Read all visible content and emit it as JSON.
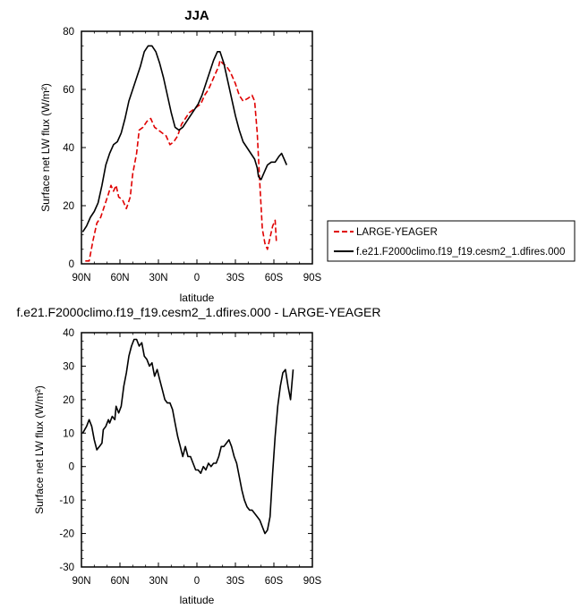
{
  "chart_data": [
    {
      "type": "line",
      "title": "JJA",
      "xlabel": "latitude",
      "ylabel": "Surface net LW flux (W/m²)",
      "xlim": [
        90,
        -90
      ],
      "ylim": [
        0,
        80
      ],
      "x_ticks": [
        {
          "value": 90,
          "label": "90N"
        },
        {
          "value": 60,
          "label": "60N"
        },
        {
          "value": 30,
          "label": "30N"
        },
        {
          "value": 0,
          "label": "0"
        },
        {
          "value": -30,
          "label": "30S"
        },
        {
          "value": -60,
          "label": "60S"
        },
        {
          "value": -90,
          "label": "90S"
        }
      ],
      "y_ticks": [
        0,
        20,
        40,
        60,
        80
      ],
      "legend_position": "right",
      "series": [
        {
          "name": "LARGE-YEAGER",
          "color": "#e00000",
          "dash": "dashed",
          "points": [
            [
              87,
              1
            ],
            [
              84,
              1
            ],
            [
              81,
              8
            ],
            [
              78,
              14
            ],
            [
              75,
              16
            ],
            [
              72,
              20
            ],
            [
              69,
              24
            ],
            [
              67,
              27
            ],
            [
              65,
              25
            ],
            [
              63,
              27
            ],
            [
              61,
              23
            ],
            [
              58,
              22
            ],
            [
              55,
              19
            ],
            [
              52,
              23
            ],
            [
              50,
              31
            ],
            [
              47,
              38
            ],
            [
              45,
              46
            ],
            [
              42,
              47
            ],
            [
              39,
              49
            ],
            [
              36,
              50
            ],
            [
              33,
              47
            ],
            [
              30,
              46
            ],
            [
              27,
              45
            ],
            [
              24,
              44
            ],
            [
              21,
              41
            ],
            [
              18,
              42
            ],
            [
              15,
              44
            ],
            [
              12,
              48
            ],
            [
              9,
              50
            ],
            [
              6,
              52
            ],
            [
              3,
              53
            ],
            [
              0,
              54
            ],
            [
              -3,
              55
            ],
            [
              -6,
              58
            ],
            [
              -9,
              60
            ],
            [
              -12,
              63
            ],
            [
              -15,
              66
            ],
            [
              -17,
              68
            ],
            [
              -18,
              70
            ],
            [
              -20,
              69
            ],
            [
              -23,
              68
            ],
            [
              -26,
              66
            ],
            [
              -30,
              62
            ],
            [
              -33,
              58
            ],
            [
              -36,
              56
            ],
            [
              -40,
              57
            ],
            [
              -43,
              58
            ],
            [
              -45,
              56
            ],
            [
              -47,
              45
            ],
            [
              -49,
              28
            ],
            [
              -51,
              12
            ],
            [
              -53,
              7
            ],
            [
              -55,
              5
            ],
            [
              -57,
              9
            ],
            [
              -59,
              13
            ],
            [
              -61,
              15
            ],
            [
              -62,
              7
            ]
          ]
        },
        {
          "name": "f.e21.F2000climo.f19_f19.cesm2_1.dfires.000",
          "color": "#000000",
          "dash": "solid",
          "points": [
            [
              89,
              11
            ],
            [
              86,
              13
            ],
            [
              83,
              16
            ],
            [
              80,
              18
            ],
            [
              77,
              21
            ],
            [
              74,
              27
            ],
            [
              71,
              34
            ],
            [
              68,
              38
            ],
            [
              65,
              41
            ],
            [
              62,
              42
            ],
            [
              59,
              45
            ],
            [
              56,
              50
            ],
            [
              53,
              56
            ],
            [
              50,
              60
            ],
            [
              47,
              64
            ],
            [
              44,
              68
            ],
            [
              41,
              73
            ],
            [
              38,
              75
            ],
            [
              35,
              75
            ],
            [
              32,
              73
            ],
            [
              29,
              69
            ],
            [
              26,
              64
            ],
            [
              23,
              58
            ],
            [
              20,
              52
            ],
            [
              17,
              47
            ],
            [
              14,
              46
            ],
            [
              11,
              47
            ],
            [
              8,
              49
            ],
            [
              5,
              51
            ],
            [
              2,
              53
            ],
            [
              -1,
              55
            ],
            [
              -4,
              58
            ],
            [
              -7,
              62
            ],
            [
              -10,
              66
            ],
            [
              -13,
              70
            ],
            [
              -16,
              73
            ],
            [
              -18,
              73
            ],
            [
              -21,
              69
            ],
            [
              -24,
              63
            ],
            [
              -27,
              57
            ],
            [
              -30,
              51
            ],
            [
              -33,
              46
            ],
            [
              -36,
              42
            ],
            [
              -39,
              40
            ],
            [
              -42,
              38
            ],
            [
              -45,
              36
            ],
            [
              -47,
              33
            ],
            [
              -48,
              30
            ],
            [
              -50,
              29
            ],
            [
              -52,
              31
            ],
            [
              -55,
              34
            ],
            [
              -58,
              35
            ],
            [
              -61,
              35
            ],
            [
              -64,
              37
            ],
            [
              -66,
              38
            ],
            [
              -68,
              36
            ],
            [
              -70,
              34
            ]
          ]
        }
      ]
    },
    {
      "type": "line",
      "title": "f.e21.F2000climo.f19_f19.cesm2_1.dfires.000 - LARGE-YEAGER",
      "xlabel": "latitude",
      "ylabel": "Surface net LW flux (W/m²)",
      "xlim": [
        90,
        -90
      ],
      "ylim": [
        -30,
        40
      ],
      "x_ticks": [
        {
          "value": 90,
          "label": "90N"
        },
        {
          "value": 60,
          "label": "60N"
        },
        {
          "value": 30,
          "label": "30N"
        },
        {
          "value": 0,
          "label": "0"
        },
        {
          "value": -30,
          "label": "30S"
        },
        {
          "value": -60,
          "label": "60S"
        },
        {
          "value": -90,
          "label": "90S"
        }
      ],
      "y_ticks": [
        -30,
        -20,
        -10,
        0,
        10,
        20,
        30,
        40
      ],
      "series": [
        {
          "name": "",
          "color": "#000000",
          "dash": "solid",
          "points": [
            [
              89,
              10
            ],
            [
              86,
              12
            ],
            [
              84,
              14
            ],
            [
              82,
              12
            ],
            [
              80,
              8
            ],
            [
              78,
              5
            ],
            [
              76,
              6
            ],
            [
              74,
              7
            ],
            [
              73,
              11
            ],
            [
              71,
              12
            ],
            [
              69,
              14
            ],
            [
              68,
              13
            ],
            [
              66,
              15
            ],
            [
              64,
              14
            ],
            [
              63,
              18
            ],
            [
              61,
              16
            ],
            [
              59,
              18
            ],
            [
              57,
              24
            ],
            [
              55,
              28
            ],
            [
              53,
              33
            ],
            [
              51,
              36
            ],
            [
              49,
              38
            ],
            [
              47,
              38
            ],
            [
              45,
              36
            ],
            [
              43,
              37
            ],
            [
              41,
              33
            ],
            [
              39,
              32
            ],
            [
              37,
              30
            ],
            [
              35,
              31
            ],
            [
              33,
              27
            ],
            [
              31,
              29
            ],
            [
              29,
              26
            ],
            [
              27,
              23
            ],
            [
              25,
              20
            ],
            [
              23,
              19
            ],
            [
              21,
              19
            ],
            [
              19,
              17
            ],
            [
              17,
              13
            ],
            [
              15,
              9
            ],
            [
              13,
              6
            ],
            [
              11,
              3
            ],
            [
              9,
              6
            ],
            [
              7,
              3
            ],
            [
              5,
              3
            ],
            [
              3,
              1
            ],
            [
              1,
              -1
            ],
            [
              -1,
              -1
            ],
            [
              -3,
              -2
            ],
            [
              -5,
              0
            ],
            [
              -7,
              -1
            ],
            [
              -9,
              1
            ],
            [
              -11,
              0
            ],
            [
              -13,
              1
            ],
            [
              -15,
              1
            ],
            [
              -17,
              3
            ],
            [
              -19,
              6
            ],
            [
              -21,
              6
            ],
            [
              -23,
              7
            ],
            [
              -25,
              8
            ],
            [
              -27,
              6
            ],
            [
              -29,
              3
            ],
            [
              -31,
              1
            ],
            [
              -33,
              -3
            ],
            [
              -35,
              -7
            ],
            [
              -37,
              -10
            ],
            [
              -39,
              -12
            ],
            [
              -41,
              -13
            ],
            [
              -43,
              -13
            ],
            [
              -45,
              -14
            ],
            [
              -47,
              -15
            ],
            [
              -49,
              -16
            ],
            [
              -51,
              -18
            ],
            [
              -53,
              -20
            ],
            [
              -55,
              -19
            ],
            [
              -57,
              -15
            ],
            [
              -59,
              -2
            ],
            [
              -61,
              9
            ],
            [
              -63,
              18
            ],
            [
              -65,
              24
            ],
            [
              -67,
              28
            ],
            [
              -69,
              29
            ],
            [
              -71,
              24
            ],
            [
              -73,
              20
            ],
            [
              -75,
              29
            ]
          ]
        }
      ]
    }
  ]
}
